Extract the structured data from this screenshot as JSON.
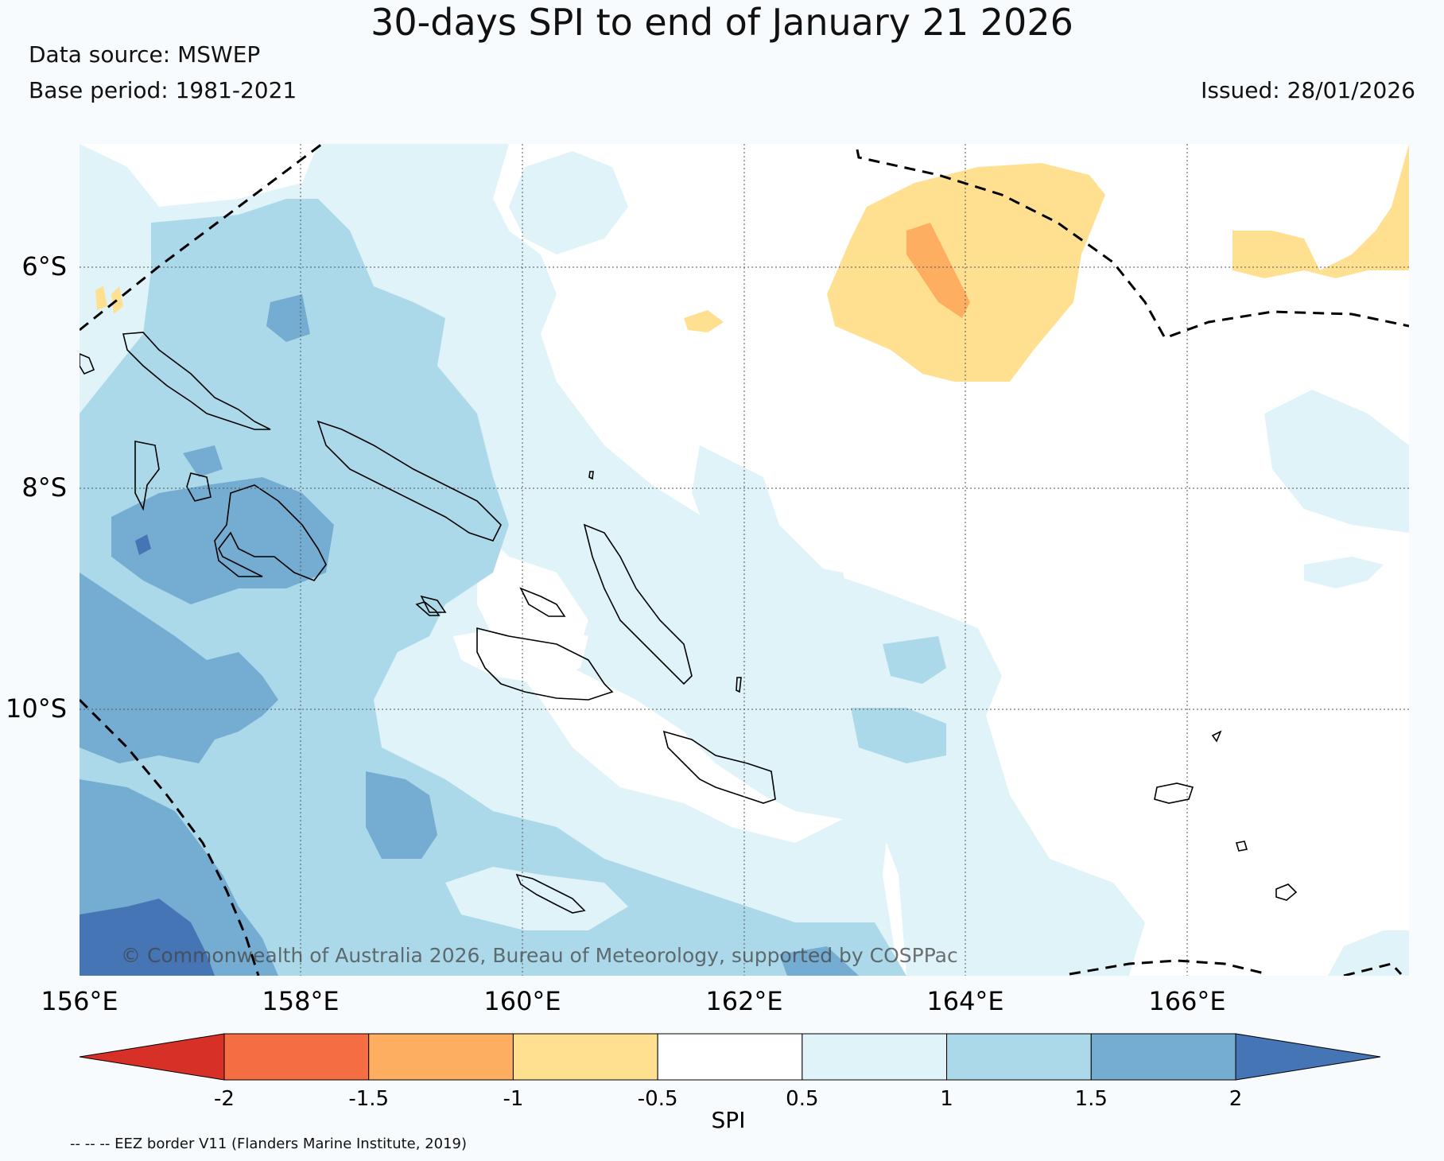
{
  "title": "30-days SPI to end of January 21 2026",
  "data_source": "Data source: MSWEP",
  "base_period": "Base period: 1981-2021",
  "issued": "Issued: 28/01/2026",
  "copyright": "© Commonwealth of Australia 2026, Bureau of Meteorology, supported by COSPPac",
  "eez_note": "-- -- -- EEZ border V11 (Flanders Marine Institute, 2019)",
  "lat_labels": [
    "6°S",
    "8°S",
    "10°S"
  ],
  "lon_labels": [
    "156°E",
    "158°E",
    "160°E",
    "162°E",
    "164°E",
    "166°E"
  ],
  "colorbar": {
    "label": "SPI",
    "ticks": [
      "-2",
      "-1.5",
      "-1",
      "-0.5",
      "0.5",
      "1",
      "1.5",
      "2"
    ],
    "colors": [
      "#d73027",
      "#f46d43",
      "#fdae61",
      "#fee090",
      "#ffffff",
      "#e0f3f8",
      "#abd9e9",
      "#74add1",
      "#4575b4"
    ]
  },
  "colors": {
    "background": "#f7fbfd",
    "spi_very_wet": "#4575b4",
    "spi_wet": "#74add1",
    "spi_moderately_wet": "#abd9e9",
    "spi_slightly_wet": "#e0f3f8",
    "spi_normal": "#ffffff",
    "spi_slightly_dry": "#fee090",
    "spi_dry": "#fdae61"
  }
}
